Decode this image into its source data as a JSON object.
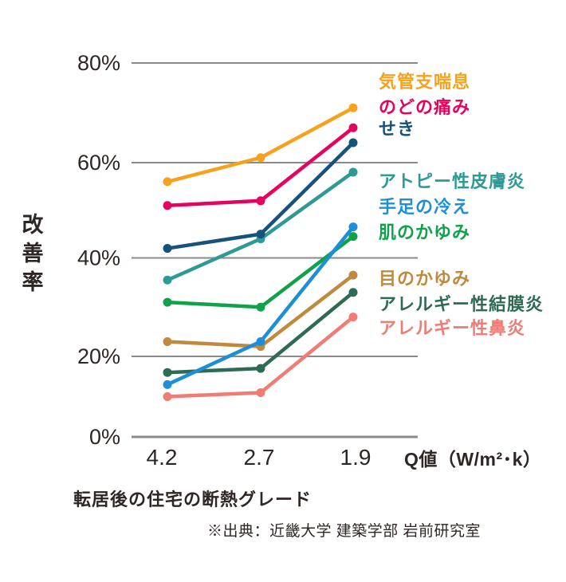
{
  "chart_data": {
    "type": "line",
    "x_categories": [
      "4.2",
      "2.7",
      "1.9"
    ],
    "x_unit_label": "Q値（W/m²･k）",
    "y_axis_label": "改善率",
    "y_ticks": [
      {
        "value": 80,
        "label": "80%"
      },
      {
        "value": 60,
        "label": "60%"
      },
      {
        "value": 40,
        "label": "40%"
      },
      {
        "value": 20,
        "label": "20%"
      },
      {
        "value": 0,
        "label": "0%"
      }
    ],
    "ylim": [
      0,
      80
    ],
    "grid": true,
    "legend_position": "right",
    "series": [
      {
        "name": "気管支喘息",
        "color": "#F6A21D",
        "values": [
          56,
          61,
          71
        ]
      },
      {
        "name": "のどの痛み",
        "color": "#E4045F",
        "values": [
          51,
          52,
          67
        ]
      },
      {
        "name": "せき",
        "color": "#16527C",
        "values": [
          42,
          45,
          64
        ]
      },
      {
        "name": "アトピー性皮膚炎",
        "color": "#2E9A94",
        "values": [
          35.5,
          44,
          58
        ]
      },
      {
        "name": "手足の冷え",
        "color": "#1E8FD6",
        "values": [
          13,
          23,
          46.5
        ]
      },
      {
        "name": "肌のかゆみ",
        "color": "#0FA24A",
        "values": [
          31,
          30,
          44.5
        ]
      },
      {
        "name": "目のかゆみ",
        "color": "#BF8A3E",
        "values": [
          23,
          22,
          36.5
        ]
      },
      {
        "name": "アレルギー性結膜炎",
        "color": "#2F6B54",
        "values": [
          16,
          17,
          33
        ]
      },
      {
        "name": "アレルギー性鼻炎",
        "color": "#EF7D75",
        "values": [
          10,
          11,
          28
        ]
      }
    ],
    "x_axis_title": "転居後の住宅の断熱グレード",
    "source": "※出典：近畿大学 建築学部 岩前研究室",
    "text_color": "#2E2624",
    "grid_color": "#8A8A8A"
  }
}
